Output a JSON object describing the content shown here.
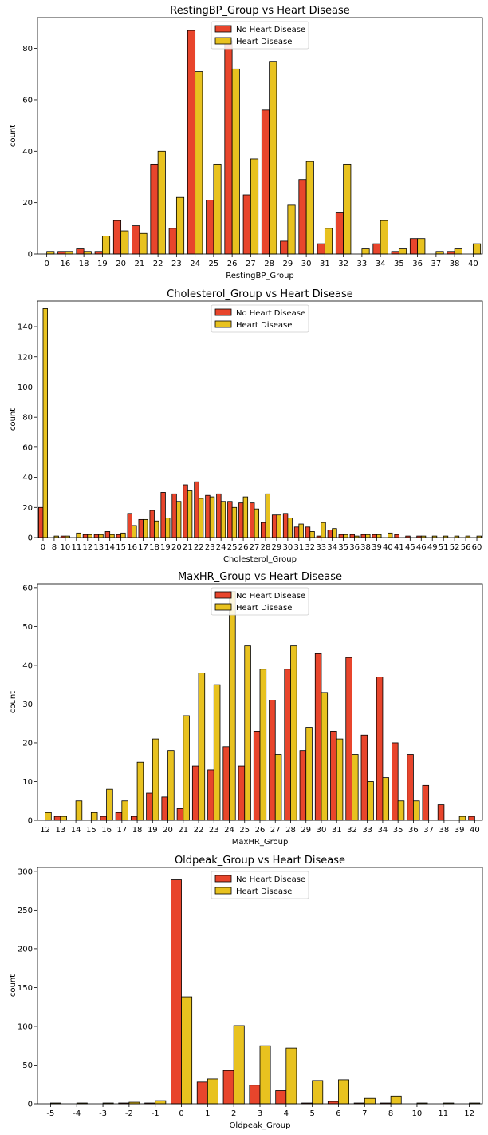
{
  "colors": {
    "no_heart_disease": "#e8452c",
    "heart_disease": "#e8c21f",
    "edge": "#000000"
  },
  "chart_data": [
    {
      "type": "bar",
      "title": "RestingBP_Group vs Heart Disease",
      "xlabel": "RestingBP_Group",
      "ylabel": "count",
      "ylim": [
        0,
        92
      ],
      "yticks": [
        0,
        20,
        40,
        60,
        80
      ],
      "legend_position": "top-center",
      "categories": [
        "0",
        "16",
        "18",
        "19",
        "20",
        "21",
        "22",
        "23",
        "24",
        "25",
        "26",
        "27",
        "28",
        "29",
        "30",
        "31",
        "32",
        "33",
        "34",
        "35",
        "36",
        "37",
        "38",
        "40"
      ],
      "series": [
        {
          "name": "No Heart Disease",
          "values": [
            0,
            1,
            2,
            1,
            13,
            11,
            35,
            10,
            87,
            21,
            83,
            23,
            56,
            5,
            29,
            4,
            16,
            0,
            4,
            1,
            6,
            0,
            1,
            0
          ]
        },
        {
          "name": "Heart Disease",
          "values": [
            1,
            1,
            1,
            7,
            9,
            8,
            40,
            22,
            71,
            35,
            72,
            37,
            75,
            19,
            36,
            10,
            35,
            2,
            13,
            2,
            6,
            1,
            2,
            4
          ]
        }
      ]
    },
    {
      "type": "bar",
      "title": "Cholesterol_Group vs Heart Disease",
      "xlabel": "Cholesterol_Group",
      "ylabel": "count",
      "ylim": [
        0,
        157
      ],
      "yticks": [
        0,
        20,
        40,
        60,
        80,
        100,
        120,
        140
      ],
      "legend_position": "top-center",
      "categories": [
        "0",
        "8",
        "10",
        "11",
        "12",
        "13",
        "14",
        "15",
        "16",
        "17",
        "18",
        "19",
        "20",
        "21",
        "22",
        "23",
        "24",
        "25",
        "26",
        "27",
        "28",
        "29",
        "30",
        "31",
        "32",
        "33",
        "34",
        "35",
        "36",
        "38",
        "39",
        "40",
        "41",
        "45",
        "46",
        "49",
        "51",
        "52",
        "56",
        "60"
      ],
      "series": [
        {
          "name": "No Heart Disease",
          "values": [
            20,
            0,
            1,
            0,
            2,
            2,
            4,
            2,
            16,
            12,
            18,
            30,
            29,
            35,
            37,
            28,
            29,
            24,
            23,
            23,
            10,
            15,
            16,
            7,
            7,
            1,
            5,
            2,
            2,
            2,
            2,
            0,
            2,
            1,
            1,
            0,
            0,
            0,
            0,
            0
          ]
        },
        {
          "name": "Heart Disease",
          "values": [
            152,
            1,
            1,
            3,
            2,
            2,
            2,
            3,
            8,
            12,
            11,
            13,
            24,
            31,
            26,
            27,
            24,
            20,
            27,
            19,
            29,
            15,
            13,
            9,
            4,
            10,
            6,
            2,
            1,
            2,
            2,
            3,
            0,
            0,
            1,
            1,
            1,
            1,
            1,
            1
          ]
        }
      ]
    },
    {
      "type": "bar",
      "title": "MaxHR_Group vs Heart Disease",
      "xlabel": "MaxHR_Group",
      "ylabel": "count",
      "ylim": [
        0,
        61
      ],
      "yticks": [
        0,
        10,
        20,
        30,
        40,
        50,
        60
      ],
      "legend_position": "top-center",
      "categories": [
        "12",
        "13",
        "14",
        "15",
        "16",
        "17",
        "18",
        "19",
        "20",
        "21",
        "22",
        "23",
        "24",
        "25",
        "26",
        "27",
        "28",
        "29",
        "30",
        "31",
        "32",
        "33",
        "34",
        "35",
        "36",
        "37",
        "38",
        "39",
        "40"
      ],
      "series": [
        {
          "name": "No Heart Disease",
          "values": [
            0,
            1,
            0,
            0,
            1,
            2,
            1,
            7,
            6,
            3,
            14,
            13,
            19,
            14,
            23,
            31,
            39,
            18,
            43,
            23,
            42,
            22,
            37,
            20,
            17,
            9,
            4,
            0,
            1
          ]
        },
        {
          "name": "Heart Disease",
          "values": [
            2,
            1,
            5,
            2,
            8,
            5,
            15,
            21,
            18,
            27,
            38,
            35,
            59,
            45,
            39,
            17,
            45,
            24,
            33,
            21,
            17,
            10,
            11,
            5,
            5,
            0,
            0,
            1,
            0
          ]
        }
      ]
    },
    {
      "type": "bar",
      "title": "Oldpeak_Group vs Heart Disease",
      "xlabel": "Oldpeak_Group",
      "ylabel": "count",
      "ylim": [
        0,
        305
      ],
      "yticks": [
        0,
        50,
        100,
        150,
        200,
        250,
        300
      ],
      "legend_position": "top-center",
      "categories": [
        "-5",
        "-4",
        "-3",
        "-2",
        "-1",
        "0",
        "1",
        "2",
        "3",
        "4",
        "5",
        "6",
        "7",
        "8",
        "10",
        "11",
        "12"
      ],
      "series": [
        {
          "name": "No Heart Disease",
          "values": [
            0,
            0,
            0,
            1,
            1,
            289,
            28,
            43,
            24,
            17,
            1,
            3,
            1,
            1,
            0,
            0,
            0
          ]
        },
        {
          "name": "Heart Disease",
          "values": [
            1,
            1,
            1,
            2,
            4,
            138,
            32,
            101,
            75,
            72,
            30,
            31,
            7,
            10,
            1,
            1,
            1
          ]
        }
      ]
    }
  ]
}
